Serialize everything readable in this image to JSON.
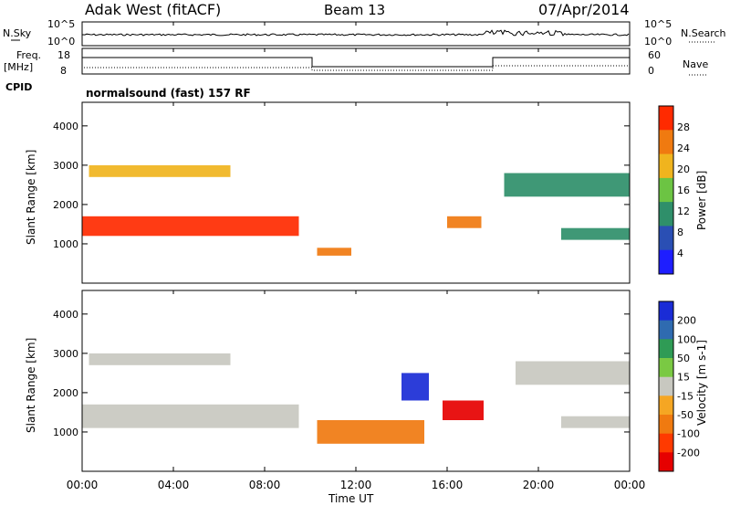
{
  "header": {
    "station": "Adak West (fitACF)",
    "beam": "Beam 13",
    "date": "07/Apr/2014"
  },
  "strip": {
    "nsky_label": "N.Sky",
    "nsky_ticks": [
      "10^5",
      "10^0"
    ],
    "nsearch_label": "N.Search",
    "nsearch_ticks": [
      "10^5",
      "10^0"
    ],
    "freq_label": "Freq.",
    "freq_unit": "[MHz]",
    "freq_ticks": [
      "18",
      "8"
    ],
    "nave_label": "Nave",
    "nave_ticks": [
      "60",
      "0"
    ],
    "cpid_label": "CPID",
    "cpid_text": "normalsound (fast) 157 RF"
  },
  "chart_data": [
    {
      "type": "heatmap",
      "panel": "power",
      "ylabel": "Slant Range [km]",
      "xlabel": "",
      "ylim": [
        0,
        4600
      ],
      "yticks": [
        "1000",
        "2000",
        "3000",
        "4000"
      ],
      "colorbar_label": "Power [dB]",
      "colorbar_ticks": [
        "4",
        "8",
        "12",
        "16",
        "20",
        "24",
        "28"
      ],
      "colorbar_colors": [
        "#1e1eff",
        "#2a4fb4",
        "#2f8f6a",
        "#6cc443",
        "#f0b41e",
        "#f07a10",
        "#ff2a00"
      ],
      "echo_bands": [
        {
          "t_start": 0.0,
          "t_end": 9.5,
          "range_low": 1200,
          "range_high": 1700,
          "level": 28
        },
        {
          "t_start": 0.3,
          "t_end": 6.5,
          "range_low": 2700,
          "range_high": 3000,
          "level": 20
        },
        {
          "t_start": 10.3,
          "t_end": 11.8,
          "range_low": 700,
          "range_high": 900,
          "level": 24
        },
        {
          "t_start": 16.0,
          "t_end": 17.5,
          "range_low": 1400,
          "range_high": 1700,
          "level": 24
        },
        {
          "t_start": 18.5,
          "t_end": 24.0,
          "range_low": 2200,
          "range_high": 2800,
          "level": 12
        },
        {
          "t_start": 21.0,
          "t_end": 24.0,
          "range_low": 1100,
          "range_high": 1400,
          "level": 12
        }
      ]
    },
    {
      "type": "heatmap",
      "panel": "velocity",
      "ylabel": "Slant Range [km]",
      "xlabel": "Time UT",
      "ylim": [
        0,
        4600
      ],
      "yticks": [
        "1000",
        "2000",
        "3000",
        "4000"
      ],
      "xticks": [
        "00:00",
        "04:00",
        "08:00",
        "12:00",
        "16:00",
        "20:00",
        "00:00"
      ],
      "colorbar_label": "Velocity [m s-1]",
      "colorbar_ticks": [
        "200",
        "100",
        "50",
        "15",
        "-15",
        "-50",
        "-100",
        "-200"
      ],
      "colorbar_colors": [
        "#1a2cd6",
        "#2f6bb0",
        "#2f9b55",
        "#7ac943",
        "#c8c8c0",
        "#f5a623",
        "#f07a10",
        "#ff3a00",
        "#e60000"
      ],
      "echo_bands": [
        {
          "t_start": 0.0,
          "t_end": 9.5,
          "range_low": 1100,
          "range_high": 1700,
          "value": 0
        },
        {
          "t_start": 0.3,
          "t_end": 6.5,
          "range_low": 2700,
          "range_high": 3000,
          "value": 0
        },
        {
          "t_start": 10.3,
          "t_end": 15.0,
          "range_low": 700,
          "range_high": 1300,
          "value": -60
        },
        {
          "t_start": 14.0,
          "t_end": 15.2,
          "range_low": 1800,
          "range_high": 2500,
          "value": 200
        },
        {
          "t_start": 15.8,
          "t_end": 17.6,
          "range_low": 1300,
          "range_high": 1800,
          "value": -200
        },
        {
          "t_start": 19.0,
          "t_end": 24.0,
          "range_low": 2200,
          "range_high": 2800,
          "value": 0
        },
        {
          "t_start": 21.0,
          "t_end": 24.0,
          "range_low": 1100,
          "range_high": 1400,
          "value": 0
        }
      ]
    }
  ]
}
